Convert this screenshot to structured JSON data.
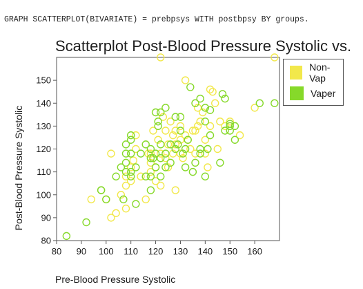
{
  "syntax_line": "GRAPH SCATTERPLOT(BIVARIATE) = prebpsys WITH postbpsy BY groups.",
  "chart_data": {
    "type": "scatter",
    "title": "Scatterplot Post-Blood Pressure Systolic vs.",
    "xlabel": "Pre-Blood Pressure Systolic",
    "ylabel": "Post-Blood Pressure Systolic",
    "xlim": [
      80,
      170
    ],
    "ylim": [
      80,
      160
    ],
    "xticks": [
      "80",
      "90",
      "100",
      "110",
      "120",
      "130",
      "140",
      "150",
      "160"
    ],
    "yticks": [
      "80",
      "90",
      "100",
      "110",
      "120",
      "130",
      "140",
      "150"
    ],
    "grid": false,
    "legend_position": "right",
    "marker": "open-circle",
    "series": [
      {
        "name": "Non-Vap",
        "color": "#f2e84b",
        "points": [
          [
            94,
            98
          ],
          [
            100,
            98
          ],
          [
            102,
            90
          ],
          [
            102,
            118
          ],
          [
            104,
            92
          ],
          [
            106,
            100
          ],
          [
            108,
            94
          ],
          [
            108,
            104
          ],
          [
            108,
            108
          ],
          [
            110,
            106
          ],
          [
            110,
            112
          ],
          [
            111,
            115
          ],
          [
            112,
            120
          ],
          [
            112,
            126
          ],
          [
            114,
            108
          ],
          [
            116,
            98
          ],
          [
            117,
            118
          ],
          [
            118,
            110
          ],
          [
            118,
            114
          ],
          [
            118,
            118
          ],
          [
            119,
            128
          ],
          [
            120,
            106
          ],
          [
            120,
            112
          ],
          [
            121,
            124
          ],
          [
            122,
            104
          ],
          [
            122,
            118
          ],
          [
            123,
            134
          ],
          [
            124,
            116
          ],
          [
            124,
            128
          ],
          [
            125,
            112
          ],
          [
            125,
            122
          ],
          [
            126,
            132
          ],
          [
            127,
            118
          ],
          [
            127,
            126
          ],
          [
            128,
            102
          ],
          [
            128,
            122
          ],
          [
            128,
            128
          ],
          [
            130,
            118
          ],
          [
            130,
            124
          ],
          [
            130,
            130
          ],
          [
            131,
            116
          ],
          [
            132,
            150
          ],
          [
            132,
            126
          ],
          [
            133,
            124
          ],
          [
            134,
            120
          ],
          [
            135,
            128
          ],
          [
            136,
            118
          ],
          [
            136,
            128
          ],
          [
            137,
            138
          ],
          [
            137,
            130
          ],
          [
            138,
            132
          ],
          [
            139,
            136
          ],
          [
            140,
            118
          ],
          [
            140,
            124
          ],
          [
            141,
            112
          ],
          [
            142,
            146
          ],
          [
            142,
            130
          ],
          [
            143,
            145
          ],
          [
            144,
            140
          ],
          [
            145,
            120
          ],
          [
            146,
            132
          ],
          [
            148,
            130
          ],
          [
            150,
            132
          ],
          [
            154,
            126
          ],
          [
            160,
            138
          ],
          [
            168,
            160
          ],
          [
            122,
            160
          ]
        ]
      },
      {
        "name": "Vaper",
        "color": "#86d92a",
        "points": [
          [
            84,
            82
          ],
          [
            92,
            88
          ],
          [
            98,
            102
          ],
          [
            98,
            102
          ],
          [
            100,
            98
          ],
          [
            104,
            108
          ],
          [
            106,
            112
          ],
          [
            107,
            98
          ],
          [
            108,
            110
          ],
          [
            108,
            114
          ],
          [
            108,
            118
          ],
          [
            108,
            122
          ],
          [
            110,
            108
          ],
          [
            110,
            110
          ],
          [
            110,
            124
          ],
          [
            110,
            126
          ],
          [
            110,
            118
          ],
          [
            112,
            96
          ],
          [
            112,
            112
          ],
          [
            114,
            118
          ],
          [
            116,
            108
          ],
          [
            116,
            122
          ],
          [
            118,
            102
          ],
          [
            118,
            108
          ],
          [
            118,
            116
          ],
          [
            118,
            120
          ],
          [
            119,
            116
          ],
          [
            120,
            112
          ],
          [
            120,
            118
          ],
          [
            120,
            136
          ],
          [
            121,
            130
          ],
          [
            121,
            132
          ],
          [
            122,
            108
          ],
          [
            122,
            116
          ],
          [
            122,
            122
          ],
          [
            122,
            136
          ],
          [
            124,
            118
          ],
          [
            124,
            138
          ],
          [
            124,
            112
          ],
          [
            126,
            122
          ],
          [
            126,
            114
          ],
          [
            128,
            134
          ],
          [
            128,
            120
          ],
          [
            129,
            122
          ],
          [
            130,
            134
          ],
          [
            130,
            128
          ],
          [
            131,
            118
          ],
          [
            132,
            112
          ],
          [
            132,
            120
          ],
          [
            133,
            124
          ],
          [
            134,
            147
          ],
          [
            135,
            110
          ],
          [
            136,
            114
          ],
          [
            136,
            140
          ],
          [
            138,
            118
          ],
          [
            138,
            120
          ],
          [
            138,
            142
          ],
          [
            140,
            108
          ],
          [
            140,
            132
          ],
          [
            140,
            138
          ],
          [
            141,
            120
          ],
          [
            142,
            137
          ],
          [
            142,
            126
          ],
          [
            146,
            114
          ],
          [
            147,
            144
          ],
          [
            148,
            128
          ],
          [
            148,
            142
          ],
          [
            150,
            128
          ],
          [
            150,
            130
          ],
          [
            152,
            124
          ],
          [
            152,
            130
          ],
          [
            162,
            140
          ],
          [
            168,
            140
          ],
          [
            150,
            131
          ]
        ]
      }
    ]
  }
}
